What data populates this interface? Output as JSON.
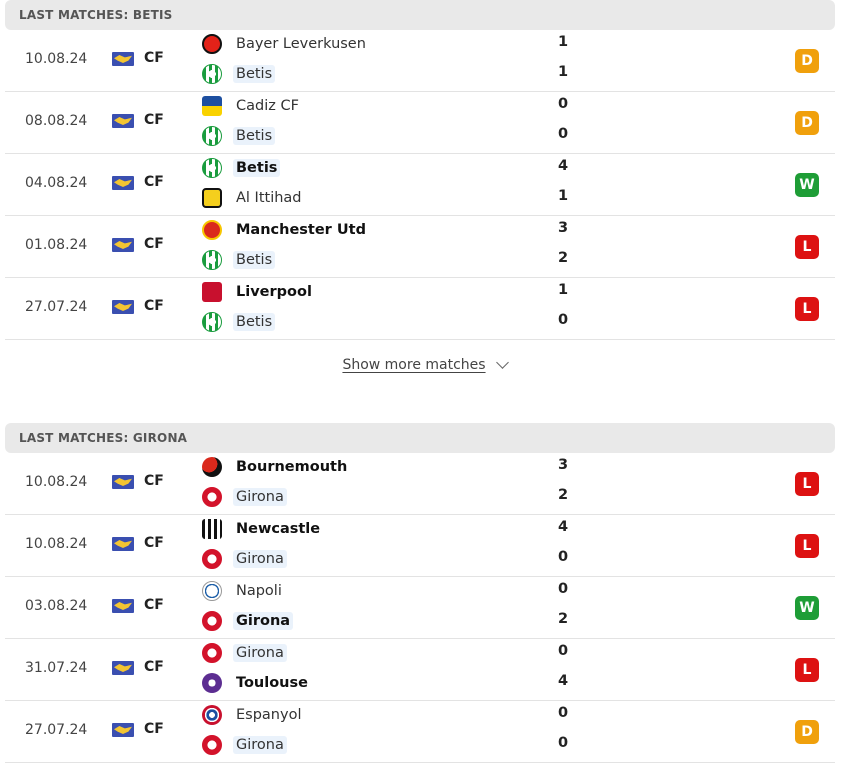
{
  "sections": [
    {
      "title": "LAST MATCHES: BETIS",
      "show_more": "Show more matches",
      "matches": [
        {
          "date": "10.08.24",
          "comp": "CF",
          "home": {
            "name": "Bayer Leverkusen",
            "crest": "leverkusen-crest",
            "bold": false,
            "hl": false
          },
          "away": {
            "name": "Betis",
            "crest": "betis-crest",
            "bold": false,
            "hl": true
          },
          "score_home": "1",
          "score_away": "1",
          "result": "D"
        },
        {
          "date": "08.08.24",
          "comp": "CF",
          "home": {
            "name": "Cadiz CF",
            "crest": "cadiz-crest",
            "bold": false,
            "hl": false
          },
          "away": {
            "name": "Betis",
            "crest": "betis-crest",
            "bold": false,
            "hl": true
          },
          "score_home": "0",
          "score_away": "0",
          "result": "D"
        },
        {
          "date": "04.08.24",
          "comp": "CF",
          "home": {
            "name": "Betis",
            "crest": "betis-crest",
            "bold": true,
            "hl": true
          },
          "away": {
            "name": "Al Ittihad",
            "crest": "ittihad-crest",
            "bold": false,
            "hl": false
          },
          "score_home": "4",
          "score_away": "1",
          "result": "W"
        },
        {
          "date": "01.08.24",
          "comp": "CF",
          "home": {
            "name": "Manchester Utd",
            "crest": "manutd-crest",
            "bold": true,
            "hl": false
          },
          "away": {
            "name": "Betis",
            "crest": "betis-crest",
            "bold": false,
            "hl": true
          },
          "score_home": "3",
          "score_away": "2",
          "result": "L"
        },
        {
          "date": "27.07.24",
          "comp": "CF",
          "home": {
            "name": "Liverpool",
            "crest": "liverpool-crest",
            "bold": true,
            "hl": false
          },
          "away": {
            "name": "Betis",
            "crest": "betis-crest",
            "bold": false,
            "hl": true
          },
          "score_home": "1",
          "score_away": "0",
          "result": "L"
        }
      ]
    },
    {
      "title": "LAST MATCHES: GIRONA",
      "matches": [
        {
          "date": "10.08.24",
          "comp": "CF",
          "home": {
            "name": "Bournemouth",
            "crest": "bournemouth-crest",
            "bold": true,
            "hl": false
          },
          "away": {
            "name": "Girona",
            "crest": "girona-crest",
            "bold": false,
            "hl": true
          },
          "score_home": "3",
          "score_away": "2",
          "result": "L"
        },
        {
          "date": "10.08.24",
          "comp": "CF",
          "home": {
            "name": "Newcastle",
            "crest": "newcastle-crest",
            "bold": true,
            "hl": false
          },
          "away": {
            "name": "Girona",
            "crest": "girona-crest",
            "bold": false,
            "hl": true
          },
          "score_home": "4",
          "score_away": "0",
          "result": "L"
        },
        {
          "date": "03.08.24",
          "comp": "CF",
          "home": {
            "name": "Napoli",
            "crest": "napoli-crest",
            "bold": false,
            "hl": false
          },
          "away": {
            "name": "Girona",
            "crest": "girona-crest",
            "bold": true,
            "hl": true
          },
          "score_home": "0",
          "score_away": "2",
          "result": "W"
        },
        {
          "date": "31.07.24",
          "comp": "CF",
          "home": {
            "name": "Girona",
            "crest": "girona-crest",
            "bold": false,
            "hl": true
          },
          "away": {
            "name": "Toulouse",
            "crest": "toulouse-crest",
            "bold": true,
            "hl": false
          },
          "score_home": "0",
          "score_away": "4",
          "result": "L"
        },
        {
          "date": "27.07.24",
          "comp": "CF",
          "home": {
            "name": "Espanyol",
            "crest": "espanyol-crest",
            "bold": false,
            "hl": false
          },
          "away": {
            "name": "Girona",
            "crest": "girona-crest",
            "bold": false,
            "hl": true
          },
          "score_home": "0",
          "score_away": "0",
          "result": "D"
        }
      ]
    }
  ],
  "competition_icon": "club-friendly-flag-icon",
  "result_colors": {
    "W": "#1e9d36",
    "D": "#f0a00c",
    "L": "#dd1212"
  }
}
